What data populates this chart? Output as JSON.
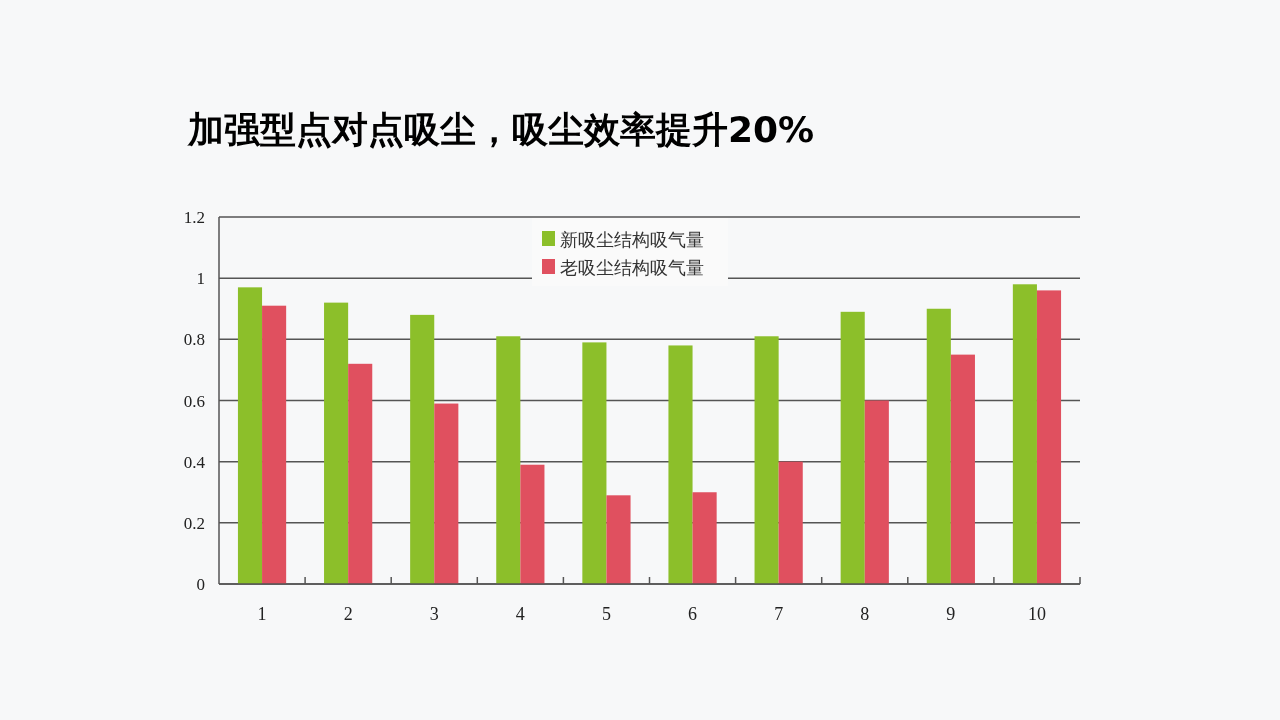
{
  "chart_data": {
    "type": "bar",
    "title": "加强型点对点吸尘，吸尘效率提升20%",
    "categories": [
      "1",
      "2",
      "3",
      "4",
      "5",
      "6",
      "7",
      "8",
      "9",
      "10"
    ],
    "series": [
      {
        "name": "新吸尘结构吸气量",
        "color": "#8cbf2a",
        "values": [
          0.97,
          0.92,
          0.88,
          0.81,
          0.79,
          0.78,
          0.81,
          0.89,
          0.9,
          0.98
        ]
      },
      {
        "name": "老吸尘结构吸气量",
        "color": "#e0505f",
        "values": [
          0.91,
          0.72,
          0.59,
          0.39,
          0.29,
          0.3,
          0.4,
          0.6,
          0.75,
          0.96
        ]
      }
    ],
    "ylim": [
      0,
      1.2
    ],
    "yticks": [
      0,
      0.2,
      0.4,
      0.6,
      0.8,
      1,
      1.2
    ],
    "grid": "y",
    "legend": "top"
  }
}
